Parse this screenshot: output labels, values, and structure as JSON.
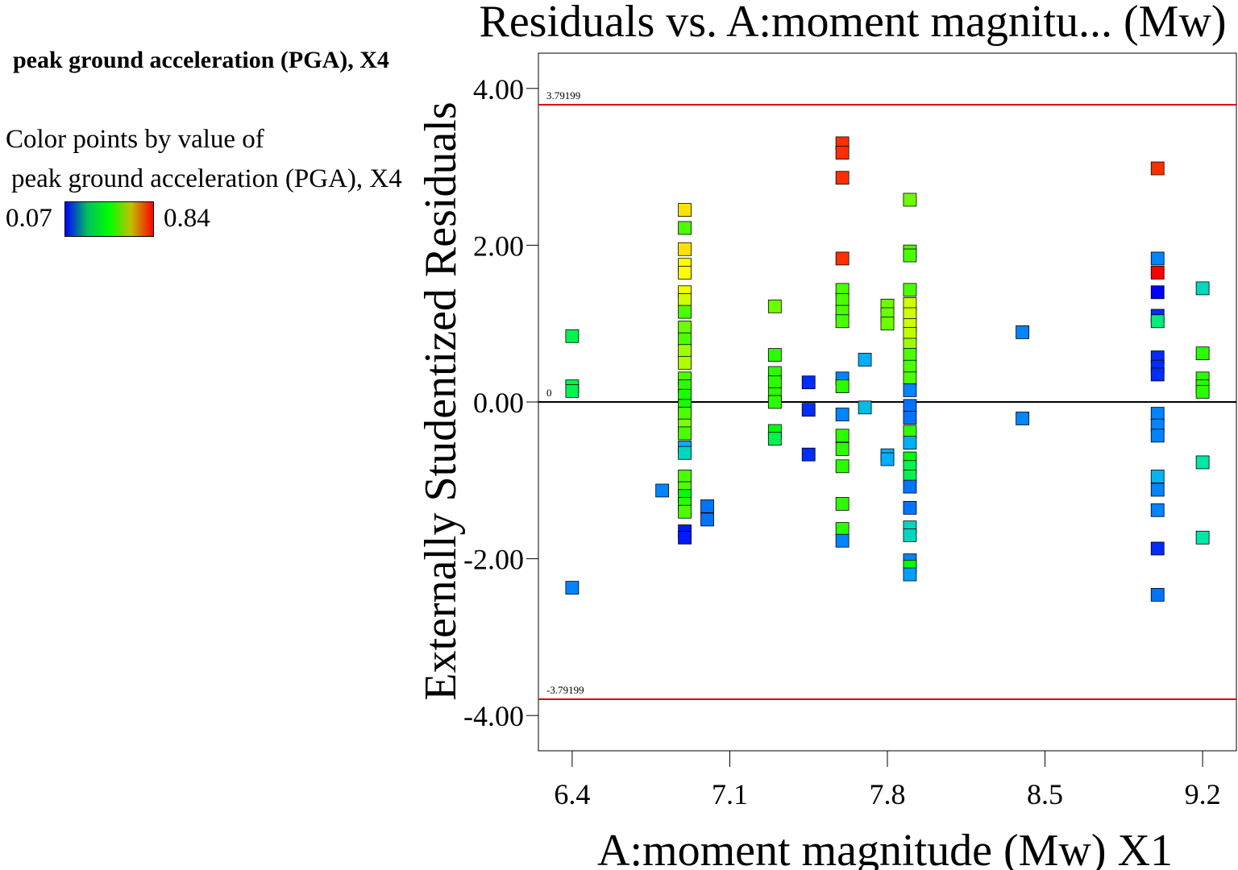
{
  "legend": {
    "title": "peak ground acceleration (PGA), X4",
    "caption_line1": "Color points by value of",
    "caption_line2": "peak ground acceleration (PGA), X4",
    "min_label": "0.07",
    "max_label": "0.84",
    "min_color": "#0000ff",
    "max_color": "#ff0000",
    "gradient": [
      "#0000ff",
      "#00c060",
      "#00ff00",
      "#c0c000",
      "#ff0000"
    ]
  },
  "chart_data": {
    "type": "scatter",
    "title": "Residuals vs. A:moment magnitu... (Mw)",
    "xlabel": "A:moment magnitude (Mw) X1",
    "ylabel": "Externally Studentized Residuals",
    "xlim": [
      6.25,
      9.35
    ],
    "ylim": [
      -4.45,
      4.45
    ],
    "xticks": [
      6.4,
      7.1,
      7.8,
      8.5,
      9.2
    ],
    "xtick_labels": [
      "6.4",
      "7.1",
      "7.8",
      "8.5",
      "9.2"
    ],
    "yticks": [
      -4,
      -2,
      0,
      2,
      4
    ],
    "ytick_labels": [
      "-4.00",
      "-2.00",
      "0.00",
      "2.00",
      "4.00"
    ],
    "grid": false,
    "reference_lines": [
      {
        "y": 3.79199,
        "label": "3.79199",
        "color": "#e00000"
      },
      {
        "y": 0,
        "label": "0",
        "color": "#000000"
      },
      {
        "y": -3.79199,
        "label": "-3.79199",
        "color": "#e00000"
      }
    ],
    "color_by": "peak ground acceleration (PGA), X4",
    "color_range": [
      0.07,
      0.84
    ],
    "points": [
      {
        "x": 6.4,
        "y": 0.84,
        "c": 0.42
      },
      {
        "x": 6.4,
        "y": 0.2,
        "c": 0.42
      },
      {
        "x": 6.4,
        "y": 0.14,
        "c": 0.42
      },
      {
        "x": 6.4,
        "y": -2.37,
        "c": 0.22
      },
      {
        "x": 6.8,
        "y": -1.13,
        "c": 0.22
      },
      {
        "x": 6.9,
        "y": 2.45,
        "c": 0.63
      },
      {
        "x": 6.9,
        "y": 2.22,
        "c": 0.5
      },
      {
        "x": 6.9,
        "y": 1.95,
        "c": 0.63
      },
      {
        "x": 6.9,
        "y": 1.75,
        "c": 0.61
      },
      {
        "x": 6.9,
        "y": 1.65,
        "c": 0.61
      },
      {
        "x": 6.9,
        "y": 1.4,
        "c": 0.6
      },
      {
        "x": 6.9,
        "y": 1.3,
        "c": 0.58
      },
      {
        "x": 6.9,
        "y": 1.15,
        "c": 0.5
      },
      {
        "x": 6.9,
        "y": 0.95,
        "c": 0.52
      },
      {
        "x": 6.9,
        "y": 0.8,
        "c": 0.5
      },
      {
        "x": 6.9,
        "y": 0.65,
        "c": 0.55
      },
      {
        "x": 6.9,
        "y": 0.5,
        "c": 0.56
      },
      {
        "x": 6.9,
        "y": 0.3,
        "c": 0.5
      },
      {
        "x": 6.9,
        "y": 0.2,
        "c": 0.48
      },
      {
        "x": 6.9,
        "y": 0.08,
        "c": 0.47
      },
      {
        "x": 6.9,
        "y": -0.05,
        "c": 0.47
      },
      {
        "x": 6.9,
        "y": -0.15,
        "c": 0.5
      },
      {
        "x": 6.9,
        "y": -0.3,
        "c": 0.53
      },
      {
        "x": 6.9,
        "y": -0.4,
        "c": 0.5
      },
      {
        "x": 6.9,
        "y": -0.58,
        "c": 0.27
      },
      {
        "x": 6.9,
        "y": -0.65,
        "c": 0.35
      },
      {
        "x": 6.9,
        "y": -0.95,
        "c": 0.5
      },
      {
        "x": 6.9,
        "y": -1.1,
        "c": 0.5
      },
      {
        "x": 6.9,
        "y": -1.2,
        "c": 0.45
      },
      {
        "x": 6.9,
        "y": -1.3,
        "c": 0.48
      },
      {
        "x": 6.9,
        "y": -1.4,
        "c": 0.5
      },
      {
        "x": 6.9,
        "y": -1.65,
        "c": 0.1
      },
      {
        "x": 6.9,
        "y": -1.73,
        "c": 0.1
      },
      {
        "x": 7.0,
        "y": -1.33,
        "c": 0.2
      },
      {
        "x": 7.0,
        "y": -1.5,
        "c": 0.2
      },
      {
        "x": 7.3,
        "y": 1.22,
        "c": 0.52
      },
      {
        "x": 7.3,
        "y": 0.6,
        "c": 0.48
      },
      {
        "x": 7.3,
        "y": 0.37,
        "c": 0.48
      },
      {
        "x": 7.3,
        "y": 0.25,
        "c": 0.48
      },
      {
        "x": 7.3,
        "y": 0.1,
        "c": 0.48
      },
      {
        "x": 7.3,
        "y": 0.0,
        "c": 0.48
      },
      {
        "x": 7.3,
        "y": -0.37,
        "c": 0.45
      },
      {
        "x": 7.3,
        "y": -0.47,
        "c": 0.42
      },
      {
        "x": 7.45,
        "y": 0.25,
        "c": 0.12
      },
      {
        "x": 7.45,
        "y": -0.1,
        "c": 0.12
      },
      {
        "x": 7.45,
        "y": -0.67,
        "c": 0.12
      },
      {
        "x": 7.6,
        "y": 3.3,
        "c": 0.78
      },
      {
        "x": 7.6,
        "y": 3.18,
        "c": 0.78
      },
      {
        "x": 7.6,
        "y": 2.86,
        "c": 0.78
      },
      {
        "x": 7.6,
        "y": 1.83,
        "c": 0.78
      },
      {
        "x": 7.6,
        "y": 1.43,
        "c": 0.5
      },
      {
        "x": 7.6,
        "y": 1.3,
        "c": 0.5
      },
      {
        "x": 7.6,
        "y": 1.15,
        "c": 0.5
      },
      {
        "x": 7.6,
        "y": 1.03,
        "c": 0.5
      },
      {
        "x": 7.6,
        "y": 0.3,
        "c": 0.22
      },
      {
        "x": 7.6,
        "y": 0.2,
        "c": 0.48
      },
      {
        "x": 7.6,
        "y": -0.16,
        "c": 0.22
      },
      {
        "x": 7.6,
        "y": -0.43,
        "c": 0.48
      },
      {
        "x": 7.6,
        "y": -0.6,
        "c": 0.48
      },
      {
        "x": 7.6,
        "y": -0.82,
        "c": 0.48
      },
      {
        "x": 7.6,
        "y": -1.3,
        "c": 0.48
      },
      {
        "x": 7.6,
        "y": -1.62,
        "c": 0.48
      },
      {
        "x": 7.6,
        "y": -1.77,
        "c": 0.22
      },
      {
        "x": 7.7,
        "y": 0.54,
        "c": 0.27
      },
      {
        "x": 7.7,
        "y": -0.07,
        "c": 0.3
      },
      {
        "x": 7.8,
        "y": 1.23,
        "c": 0.52
      },
      {
        "x": 7.8,
        "y": 1.12,
        "c": 0.52
      },
      {
        "x": 7.8,
        "y": 1.0,
        "c": 0.52
      },
      {
        "x": 7.8,
        "y": -0.68,
        "c": 0.27
      },
      {
        "x": 7.8,
        "y": -0.73,
        "c": 0.27
      },
      {
        "x": 7.9,
        "y": 2.58,
        "c": 0.52
      },
      {
        "x": 7.9,
        "y": 1.92,
        "c": 0.5
      },
      {
        "x": 7.9,
        "y": 1.87,
        "c": 0.5
      },
      {
        "x": 7.9,
        "y": 1.43,
        "c": 0.5
      },
      {
        "x": 7.9,
        "y": 1.25,
        "c": 0.58
      },
      {
        "x": 7.9,
        "y": 1.12,
        "c": 0.58
      },
      {
        "x": 7.9,
        "y": 0.98,
        "c": 0.58
      },
      {
        "x": 7.9,
        "y": 0.87,
        "c": 0.57
      },
      {
        "x": 7.9,
        "y": 0.73,
        "c": 0.55
      },
      {
        "x": 7.9,
        "y": 0.6,
        "c": 0.5
      },
      {
        "x": 7.9,
        "y": 0.45,
        "c": 0.5
      },
      {
        "x": 7.9,
        "y": 0.3,
        "c": 0.5
      },
      {
        "x": 7.9,
        "y": 0.15,
        "c": 0.22
      },
      {
        "x": 7.9,
        "y": -0.05,
        "c": 0.2
      },
      {
        "x": 7.9,
        "y": -0.2,
        "c": 0.2
      },
      {
        "x": 7.9,
        "y": -0.38,
        "c": 0.48
      },
      {
        "x": 7.9,
        "y": -0.52,
        "c": 0.27
      },
      {
        "x": 7.9,
        "y": -0.72,
        "c": 0.45
      },
      {
        "x": 7.9,
        "y": -0.83,
        "c": 0.42
      },
      {
        "x": 7.9,
        "y": -0.95,
        "c": 0.42
      },
      {
        "x": 7.9,
        "y": -1.08,
        "c": 0.2
      },
      {
        "x": 7.9,
        "y": -1.35,
        "c": 0.2
      },
      {
        "x": 7.9,
        "y": -1.6,
        "c": 0.35
      },
      {
        "x": 7.9,
        "y": -1.7,
        "c": 0.35
      },
      {
        "x": 7.9,
        "y": -2.02,
        "c": 0.22
      },
      {
        "x": 7.9,
        "y": -2.1,
        "c": 0.45
      },
      {
        "x": 7.9,
        "y": -2.2,
        "c": 0.25
      },
      {
        "x": 8.4,
        "y": 0.89,
        "c": 0.22
      },
      {
        "x": 8.4,
        "y": -0.21,
        "c": 0.22
      },
      {
        "x": 9.0,
        "y": 2.98,
        "c": 0.78
      },
      {
        "x": 9.0,
        "y": 1.83,
        "c": 0.22
      },
      {
        "x": 9.0,
        "y": 1.65,
        "c": 0.84
      },
      {
        "x": 9.0,
        "y": 1.4,
        "c": 0.07
      },
      {
        "x": 9.0,
        "y": 1.1,
        "c": 0.12
      },
      {
        "x": 9.0,
        "y": 1.03,
        "c": 0.4
      },
      {
        "x": 9.0,
        "y": 0.57,
        "c": 0.12
      },
      {
        "x": 9.0,
        "y": 0.45,
        "c": 0.12
      },
      {
        "x": 9.0,
        "y": 0.35,
        "c": 0.12
      },
      {
        "x": 9.0,
        "y": -0.15,
        "c": 0.22
      },
      {
        "x": 9.0,
        "y": -0.3,
        "c": 0.22
      },
      {
        "x": 9.0,
        "y": -0.43,
        "c": 0.22
      },
      {
        "x": 9.0,
        "y": -0.95,
        "c": 0.28
      },
      {
        "x": 9.0,
        "y": -1.12,
        "c": 0.22
      },
      {
        "x": 9.0,
        "y": -1.38,
        "c": 0.22
      },
      {
        "x": 9.0,
        "y": -1.87,
        "c": 0.12
      },
      {
        "x": 9.0,
        "y": -2.46,
        "c": 0.2
      },
      {
        "x": 9.2,
        "y": 1.45,
        "c": 0.35
      },
      {
        "x": 9.2,
        "y": 0.62,
        "c": 0.48
      },
      {
        "x": 9.2,
        "y": 0.3,
        "c": 0.48
      },
      {
        "x": 9.2,
        "y": 0.2,
        "c": 0.48
      },
      {
        "x": 9.2,
        "y": 0.13,
        "c": 0.48
      },
      {
        "x": 9.2,
        "y": -0.77,
        "c": 0.38
      },
      {
        "x": 9.2,
        "y": -1.73,
        "c": 0.38
      }
    ]
  }
}
